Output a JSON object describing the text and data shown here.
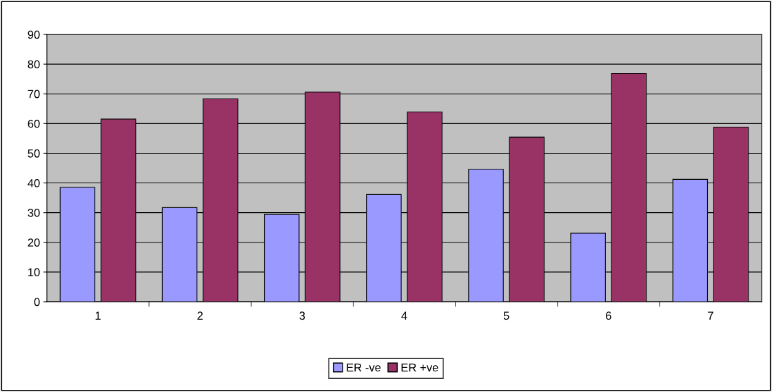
{
  "chart_data": {
    "type": "bar",
    "categories": [
      "1",
      "2",
      "3",
      "4",
      "5",
      "6",
      "7"
    ],
    "series": [
      {
        "name": "ER -ve",
        "color": "#9999ff",
        "values": [
          38.5,
          31.7,
          29.4,
          36.1,
          44.6,
          23.1,
          41.2
        ]
      },
      {
        "name": "ER +ve",
        "color": "#993366",
        "values": [
          61.5,
          68.3,
          70.6,
          63.9,
          55.4,
          76.9,
          58.8
        ]
      }
    ],
    "ylim": [
      0,
      90
    ],
    "yticks": [
      0,
      10,
      20,
      30,
      40,
      50,
      60,
      70,
      80,
      90
    ],
    "grid": "y",
    "legend": "bottom"
  }
}
